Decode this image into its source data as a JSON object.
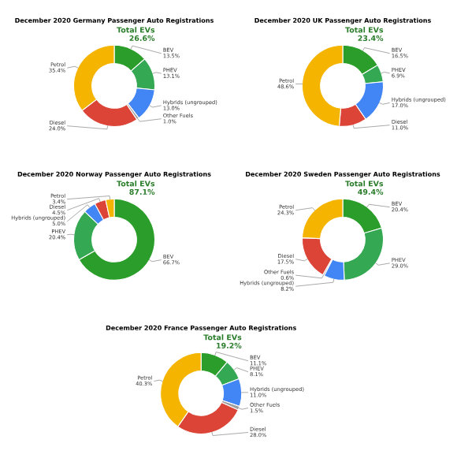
{
  "chart_data": [
    {
      "type": "donut",
      "title": "December 2020 Germany Passenger Auto Registrations",
      "categories": [
        "BEV",
        "PHEV",
        "Hybrids (ungrouped)",
        "Other Fuels",
        "Diesel",
        "Petrol"
      ],
      "values": [
        13.5,
        13.1,
        13,
        1,
        24,
        35.4
      ],
      "value_labels": [
        "13.5%",
        "13.1%",
        "13.0%",
        "1.0%",
        "24.0%",
        "35.4%"
      ],
      "colors": [
        "#2a9d2a",
        "#34a853",
        "#4285f4",
        "#9e9e9e",
        "#db4437",
        "#f4b400"
      ],
      "annotations": [
        "Total EVs\n26.6%"
      ]
    },
    {
      "type": "donut",
      "title": "December 2020 UK Passenger Auto Registrations",
      "categories": [
        "BEV",
        "PHEV",
        "Hybrids (ungrouped)",
        "Diesel",
        "Petrol"
      ],
      "values": [
        16.5,
        6.9,
        17,
        11,
        48.6
      ],
      "value_labels": [
        "16.5%",
        "6.9%",
        "17.0%",
        "11.0%",
        "48.6%"
      ],
      "colors": [
        "#2a9d2a",
        "#34a853",
        "#4285f4",
        "#db4437",
        "#f4b400"
      ],
      "annotations": [
        "Total EVs\n23.4%"
      ]
    },
    {
      "type": "donut",
      "title": "December 2020 Norway Passenger Auto Registrations",
      "categories": [
        "BEV",
        "PHEV",
        "Hybrids (ungrouped)",
        "Diesel",
        "Petrol"
      ],
      "values": [
        66.7,
        20.4,
        5,
        4.5,
        3.4
      ],
      "value_labels": [
        "66.7%",
        "20.4%",
        "5.0%",
        "4.5%",
        "3.4%"
      ],
      "colors": [
        "#2a9d2a",
        "#34a853",
        "#4285f4",
        "#db4437",
        "#f4b400"
      ],
      "annotations": [
        "Total EVs\n87.1%"
      ]
    },
    {
      "type": "donut",
      "title": "December 2020 Sweden Passenger Auto Registrations",
      "categories": [
        "BEV",
        "PHEV",
        "Hybrids (ungrouped)",
        "Other Fuels",
        "Diesel",
        "Petrol"
      ],
      "values": [
        20.4,
        29,
        8.2,
        0.6,
        17.5,
        24.3
      ],
      "value_labels": [
        "20.4%",
        "29.0%",
        "8.2%",
        "0.6%",
        "17.5%",
        "24.3%"
      ],
      "colors": [
        "#2a9d2a",
        "#34a853",
        "#4285f4",
        "#9e9e9e",
        "#db4437",
        "#f4b400"
      ],
      "annotations": [
        "Total EVs\n49.4%"
      ]
    },
    {
      "type": "donut",
      "title": "December 2020 France Passenger Auto Registrations",
      "categories": [
        "BEV",
        "PHEV",
        "Hybrids (ungrouped)",
        "Other Fuels",
        "Diesel",
        "Petrol"
      ],
      "values": [
        11.1,
        8.1,
        11,
        1.5,
        28,
        40.3
      ],
      "value_labels": [
        "11.1%",
        "8.1%",
        "11.0%",
        "1.5%",
        "28.0%",
        "40.3%"
      ],
      "colors": [
        "#2a9d2a",
        "#34a853",
        "#4285f4",
        "#9e9e9e",
        "#db4437",
        "#f4b400"
      ],
      "annotations": [
        "Total EVs\n19.2%"
      ]
    }
  ]
}
